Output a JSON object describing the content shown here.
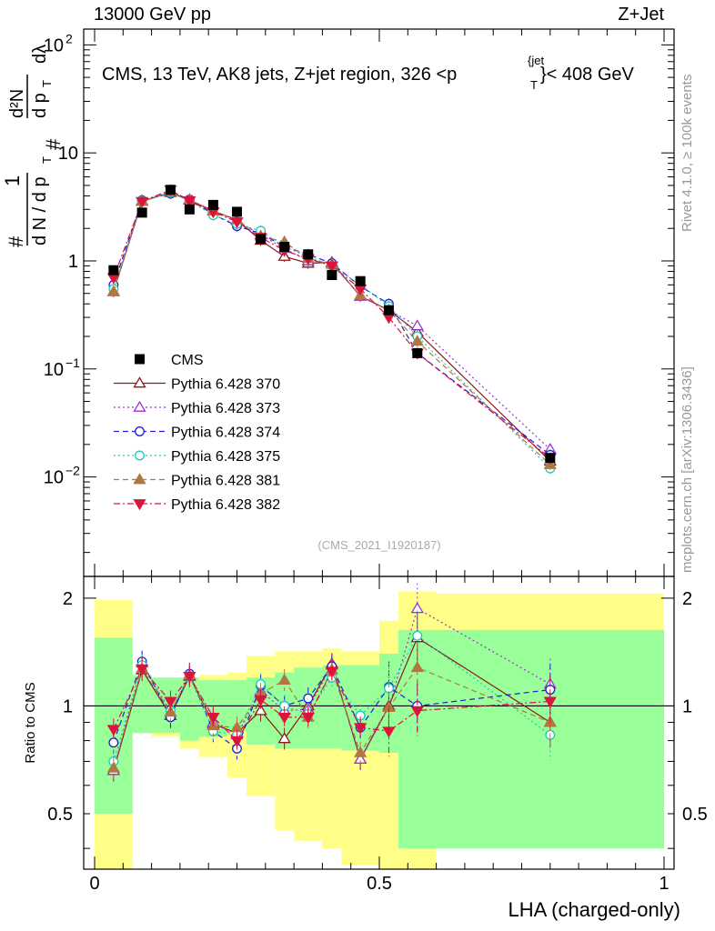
{
  "header": {
    "left": "13000 GeV pp",
    "right": "Z+Jet"
  },
  "plot_title": {
    "prefix": "CMS, 13 TeV, AK8 jets, Z+jet region, 326 <p",
    "sub": "T",
    "sup": "{jet",
    "suffix": "}< 408 GeV"
  },
  "side_labels": {
    "rivet": "Rivet 4.1.0, ≥ 100k events",
    "mcplots": "mcplots.cern.ch [arXiv:1306.3436]"
  },
  "analysis_id": "(CMS_2021_I1920187)",
  "ylabel_main": {
    "hash1": "#",
    "one": "1",
    "denom": "d N / d p",
    "denom_sub": "T",
    "hash2": "#",
    "num_top": "d²N",
    "num_bot": "d p",
    "num_bot_sub": "T",
    "dlambda": "dλ"
  },
  "ylabel_ratio": "Ratio to CMS",
  "xlabel": "LHA (charged-only)",
  "main_ticks": {
    "y_major": [
      {
        "value": 0.01,
        "base": "10",
        "exp": "−2"
      },
      {
        "value": 0.1,
        "base": "10",
        "exp": "−1"
      },
      {
        "value": 1,
        "base": "1",
        "exp": ""
      },
      {
        "value": 10,
        "base": "10",
        "exp": ""
      },
      {
        "value": 100,
        "base": "10",
        "exp": "2"
      }
    ]
  },
  "ratio_ticks": {
    "y_major": [
      {
        "value": 0.5,
        "label": "0.5"
      },
      {
        "value": 1,
        "label": "1"
      },
      {
        "value": 2,
        "label": "2"
      }
    ]
  },
  "x_ticks": [
    {
      "value": 0,
      "label": "0"
    },
    {
      "value": 0.5,
      "label": "0.5"
    },
    {
      "value": 1,
      "label": "1"
    }
  ],
  "chart_data": {
    "type": "line",
    "title": "CMS, 13 TeV, AK8 jets, Z+jet region, 326 < pT jet < 408 GeV",
    "xlabel": "LHA (charged-only)",
    "ylabel": "1/(dN/dpT) d²N/(dpT dλ)",
    "xlim": [
      0,
      1
    ],
    "ylim_main": [
      0.0012,
      140
    ],
    "ylim_ratio": [
      0.35,
      2.3
    ],
    "x": [
      0.0333,
      0.0833,
      0.1333,
      0.1667,
      0.2083,
      0.25,
      0.2917,
      0.3333,
      0.375,
      0.4167,
      0.4667,
      0.5167,
      0.5667,
      0.8
    ],
    "x_edges": [
      0,
      0.0667,
      0.1,
      0.15,
      0.1833,
      0.2333,
      0.2667,
      0.3167,
      0.35,
      0.4,
      0.4333,
      0.5,
      0.5333,
      0.6,
      1.0
    ],
    "data": {
      "name": "CMS",
      "values": [
        0.82,
        2.8,
        4.55,
        3.0,
        3.3,
        2.85,
        1.6,
        1.35,
        1.15,
        0.74,
        0.65,
        0.35,
        0.14,
        0.015
      ]
    },
    "band_inner": [
      [
        0.5,
        1.55
      ],
      [
        0.84,
        1.22
      ],
      [
        0.84,
        1.2
      ],
      [
        0.8,
        1.2
      ],
      [
        0.82,
        1.18
      ],
      [
        0.85,
        1.18
      ],
      [
        0.78,
        1.2
      ],
      [
        0.76,
        1.24
      ],
      [
        0.76,
        1.28
      ],
      [
        0.76,
        1.3
      ],
      [
        0.75,
        1.3
      ],
      [
        0.74,
        1.4
      ],
      [
        0.4,
        1.63
      ],
      [
        0.4,
        1.63
      ]
    ],
    "band_outer": [
      [
        0.35,
        1.98
      ],
      [
        0.85,
        1.17
      ],
      [
        0.82,
        1.17
      ],
      [
        0.76,
        1.17
      ],
      [
        0.72,
        1.22
      ],
      [
        0.63,
        1.24
      ],
      [
        0.56,
        1.38
      ],
      [
        0.45,
        1.42
      ],
      [
        0.42,
        1.42
      ],
      [
        0.4,
        1.45
      ],
      [
        0.36,
        1.42
      ],
      [
        0.35,
        1.73
      ],
      [
        0.35,
        2.09
      ],
      [
        0.46,
        2.06
      ]
    ],
    "series": [
      {
        "name": "Pythia 6.428 370",
        "color": "#8b1a1a",
        "marker": "triangle-open",
        "dash": "solid",
        "values": [
          0.52,
          3.55,
          4.3,
          3.65,
          2.9,
          2.4,
          1.55,
          1.1,
          0.95,
          0.97,
          0.47,
          0.35,
          0.22,
          0.014
        ],
        "ratio": [
          0.66,
          1.26,
          0.94,
          1.21,
          0.89,
          0.84,
          0.97,
          0.81,
          1.0,
          1.31,
          0.71,
          1.0,
          1.55,
          0.9
        ]
      },
      {
        "name": "Pythia 6.428 373",
        "color": "#9932cc",
        "marker": "triangle-open",
        "dash": "dot",
        "values": [
          0.52,
          3.6,
          4.4,
          3.7,
          2.9,
          2.35,
          1.75,
          1.3,
          1.0,
          0.96,
          0.47,
          0.35,
          0.25,
          0.018
        ],
        "ratio": [
          0.66,
          1.32,
          0.96,
          1.22,
          0.9,
          0.83,
          1.1,
          0.97,
          0.98,
          1.3,
          0.71,
          0.99,
          1.87,
          1.15
        ]
      },
      {
        "name": "Pythia 6.428 374",
        "color": "#1f1fd6",
        "marker": "circle-open",
        "dash": "dash",
        "values": [
          0.6,
          3.65,
          4.2,
          3.7,
          2.7,
          2.1,
          1.8,
          1.35,
          1.15,
          0.95,
          0.58,
          0.4,
          0.14,
          0.016
        ],
        "ratio": [
          0.79,
          1.33,
          0.93,
          1.23,
          0.85,
          0.76,
          1.14,
          1.0,
          1.05,
          1.29,
          0.87,
          1.13,
          1.0,
          1.11
        ]
      },
      {
        "name": "Pythia 6.428 375",
        "color": "#20c8b8",
        "marker": "circle-open",
        "dash": "dot",
        "values": [
          0.55,
          3.6,
          4.3,
          3.6,
          2.65,
          2.2,
          1.9,
          1.35,
          1.1,
          0.9,
          0.6,
          0.38,
          0.2,
          0.012
        ],
        "ratio": [
          0.7,
          1.3,
          0.97,
          1.21,
          0.85,
          0.83,
          1.15,
          1.0,
          0.95,
          1.2,
          0.94,
          1.12,
          1.57,
          0.83
        ]
      },
      {
        "name": "Pythia 6.428 381",
        "color": "#b07840",
        "marker": "triangle-filled",
        "dash": "dash",
        "values": [
          0.52,
          3.55,
          4.4,
          3.7,
          2.9,
          2.4,
          1.7,
          1.5,
          1.05,
          0.93,
          0.48,
          0.35,
          0.18,
          0.013
        ],
        "ratio": [
          0.67,
          1.27,
          0.96,
          1.22,
          0.88,
          0.87,
          1.08,
          1.18,
          0.93,
          1.26,
          0.74,
          0.99,
          1.28,
          0.9
        ]
      },
      {
        "name": "Pythia 6.428 382",
        "color": "#dc143c",
        "marker": "triangle-down-filled",
        "dash": "dashdot",
        "values": [
          0.7,
          3.55,
          4.55,
          3.6,
          2.85,
          2.3,
          1.65,
          1.25,
          1.05,
          0.9,
          0.55,
          0.3,
          0.14,
          0.015
        ],
        "ratio": [
          0.86,
          1.27,
          1.03,
          1.21,
          0.93,
          0.8,
          1.04,
          0.93,
          0.93,
          1.25,
          0.87,
          0.85,
          0.97,
          1.03
        ]
      }
    ]
  }
}
